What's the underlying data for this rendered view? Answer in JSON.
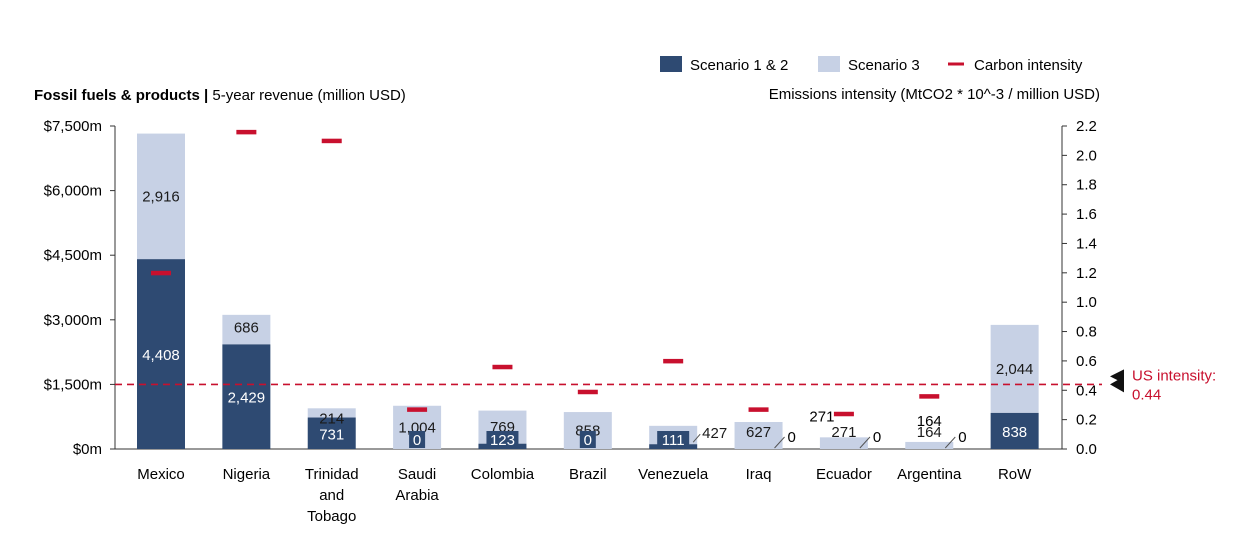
{
  "chart_data": {
    "type": "bar",
    "title_bold": "Fossil fuels & products",
    "title_sep": " | ",
    "title_rest": "5-year revenue (million USD)",
    "y2label": "Emissions intensity (MtCO2 * 10^-3 / million USD)",
    "categories": [
      "Mexico",
      "Nigeria",
      "Trinidad and Tobago",
      "Saudi Arabia",
      "Colombia",
      "Brazil",
      "Venezuela",
      "Iraq",
      "Ecuador",
      "Argentina",
      "RoW"
    ],
    "category_lines": [
      [
        "Mexico"
      ],
      [
        "Nigeria"
      ],
      [
        "Trinidad",
        "and",
        "Tobago"
      ],
      [
        "Saudi",
        "Arabia"
      ],
      [
        "Colombia"
      ],
      [
        "Brazil"
      ],
      [
        "Venezuela"
      ],
      [
        "Iraq"
      ],
      [
        "Ecuador"
      ],
      [
        "Argentina"
      ],
      [
        "RoW"
      ]
    ],
    "series": [
      {
        "name": "Scenario 1 & 2",
        "values": [
          4408,
          2429,
          731,
          0,
          123,
          0,
          111,
          0,
          0,
          0,
          838
        ],
        "labels": [
          "4,408",
          "2,429",
          "731",
          "0",
          "123",
          "0",
          "111",
          "0",
          "0",
          "0",
          "838"
        ]
      },
      {
        "name": "Scenario 3",
        "values": [
          2916,
          686,
          214,
          1004,
          769,
          858,
          427,
          627,
          271,
          164,
          2044
        ],
        "labels": [
          "2,916",
          "686",
          "214",
          "1,004",
          "769",
          "858",
          "427",
          "627",
          "271",
          "164",
          "2,044"
        ]
      },
      {
        "name": "Carbon intensity",
        "values": [
          1.2,
          2.16,
          2.1,
          0.27,
          0.56,
          0.39,
          0.6,
          0.27,
          0.24,
          0.36,
          null
        ]
      }
    ],
    "callout_labels": [
      "",
      "",
      "",
      "",
      "",
      "",
      "",
      "",
      "271",
      "164",
      ""
    ],
    "y_ticks": [
      "$0m",
      "$1,500m",
      "$3,000m",
      "$4,500m",
      "$6,000m",
      "$7,500m"
    ],
    "y_tick_values": [
      0,
      1500,
      3000,
      4500,
      6000,
      7500
    ],
    "y2_ticks": [
      "0.0",
      "0.2",
      "0.4",
      "0.6",
      "0.8",
      "1.0",
      "1.2",
      "1.4",
      "1.6",
      "1.8",
      "2.0",
      "2.2"
    ],
    "y2_tick_values": [
      0,
      0.2,
      0.4,
      0.6,
      0.8,
      1.0,
      1.2,
      1.4,
      1.6,
      1.8,
      2.0,
      2.2
    ],
    "ylim": [
      0,
      7500
    ],
    "y2lim": [
      0,
      2.2
    ],
    "reference_line": {
      "value": 0.44,
      "label_line1": "US intensity:",
      "label_line2": "0.44"
    },
    "legend_placement": "top-right",
    "colors": {
      "scenario12": "#2e4a72",
      "scenario3": "#c7d1e5",
      "intensity": "#c8102e"
    }
  }
}
